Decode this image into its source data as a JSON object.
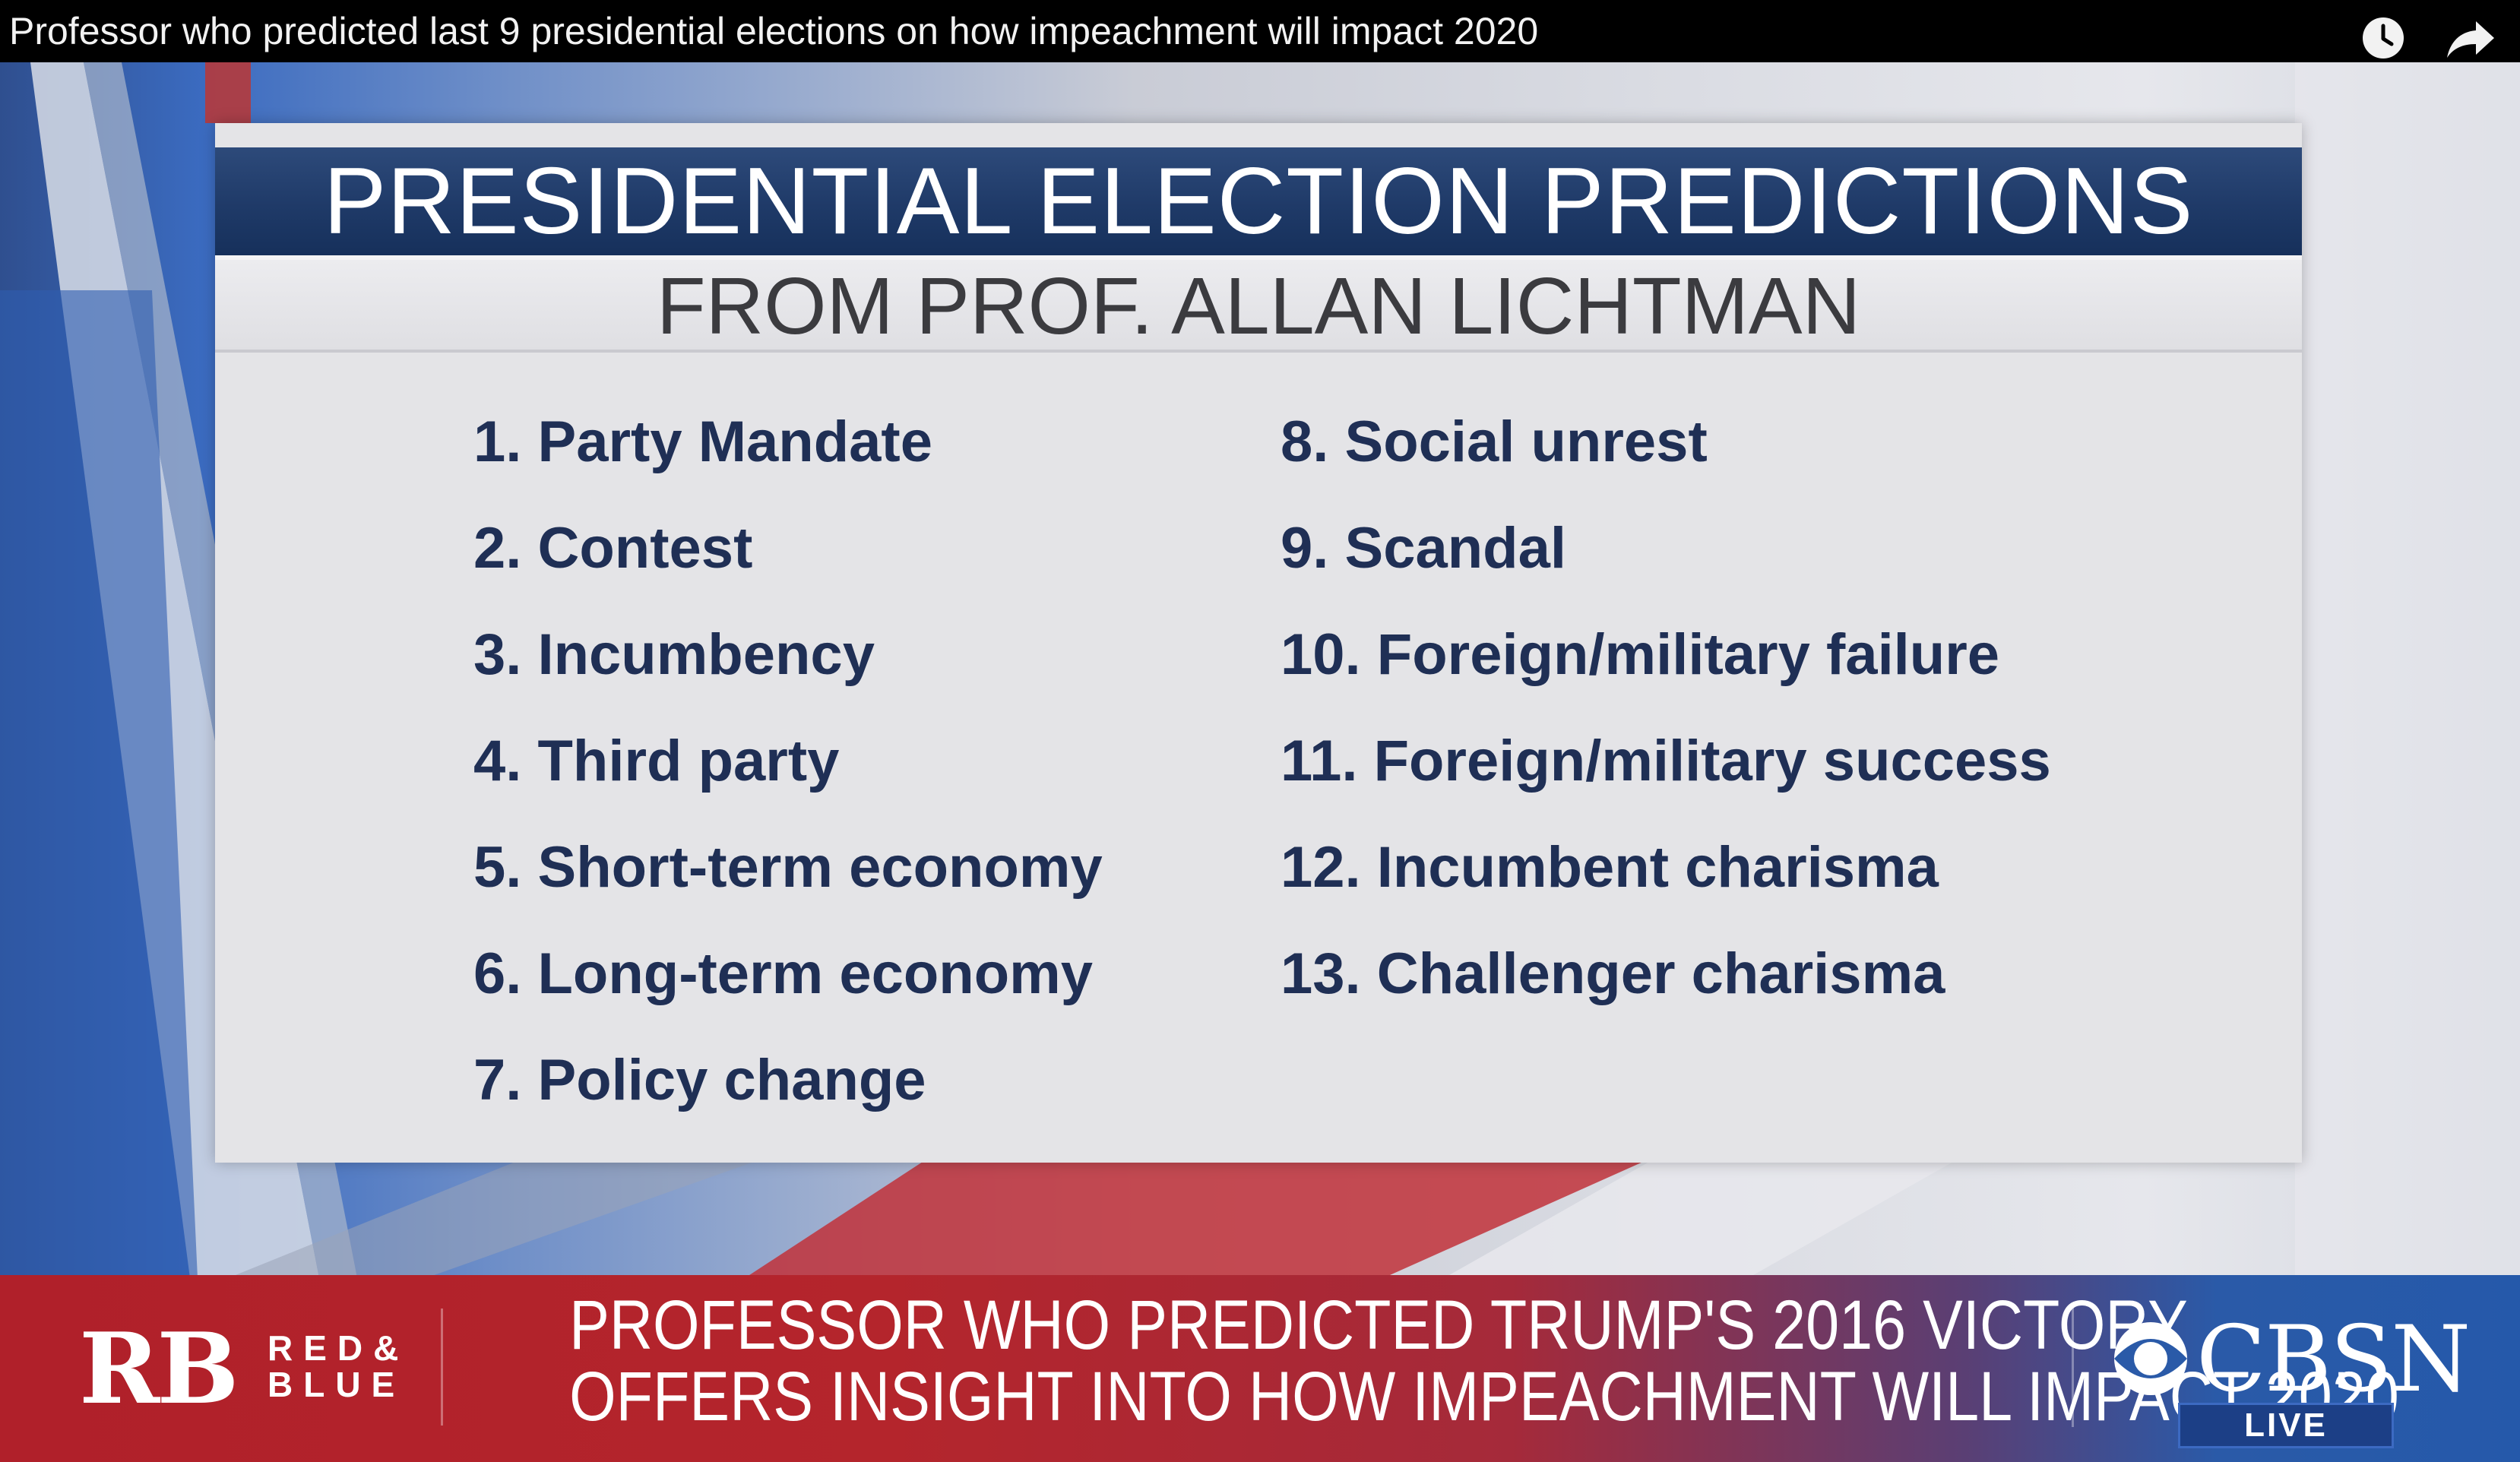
{
  "video": {
    "title": "Professor who predicted last 9 presidential elections on how impeachment will impact 2020",
    "watch_later_icon": "clock-icon",
    "share_icon": "share-arrow-icon"
  },
  "graphic": {
    "title": "PRESIDENTIAL ELECTION PREDICTIONS",
    "subtitle": "FROM PROF. ALLAN LICHTMAN",
    "left_items": [
      "1. Party Mandate",
      "2. Contest",
      "3. Incumbency",
      "4. Third party",
      "5. Short-term economy",
      "6. Long-term economy",
      "7. Policy change"
    ],
    "right_items": [
      "8. Social unrest",
      "9. Scandal",
      "10. Foreign/military failure",
      "11. Foreign/military success",
      "12. Incumbent charisma",
      "13. Challenger charisma"
    ]
  },
  "lower_third": {
    "logo_mark": "RB",
    "logo_word_1": "RED&",
    "logo_word_2": "BLUE",
    "headline_line_1": "PROFESSOR WHO PREDICTED TRUMP'S 2016 VICTORY",
    "headline_line_2": "OFFERS INSIGHT INTO HOW IMPEACHMENT WILL IMPACT 2020",
    "network": "CBSN",
    "network_icon": "cbs-eye-icon",
    "live_label": "LIVE"
  },
  "colors": {
    "title_bar": "#1f3a68",
    "item_text": "#1f2f55",
    "lower_third_red": "#b0202a",
    "lower_third_blue": "#2559aa"
  }
}
